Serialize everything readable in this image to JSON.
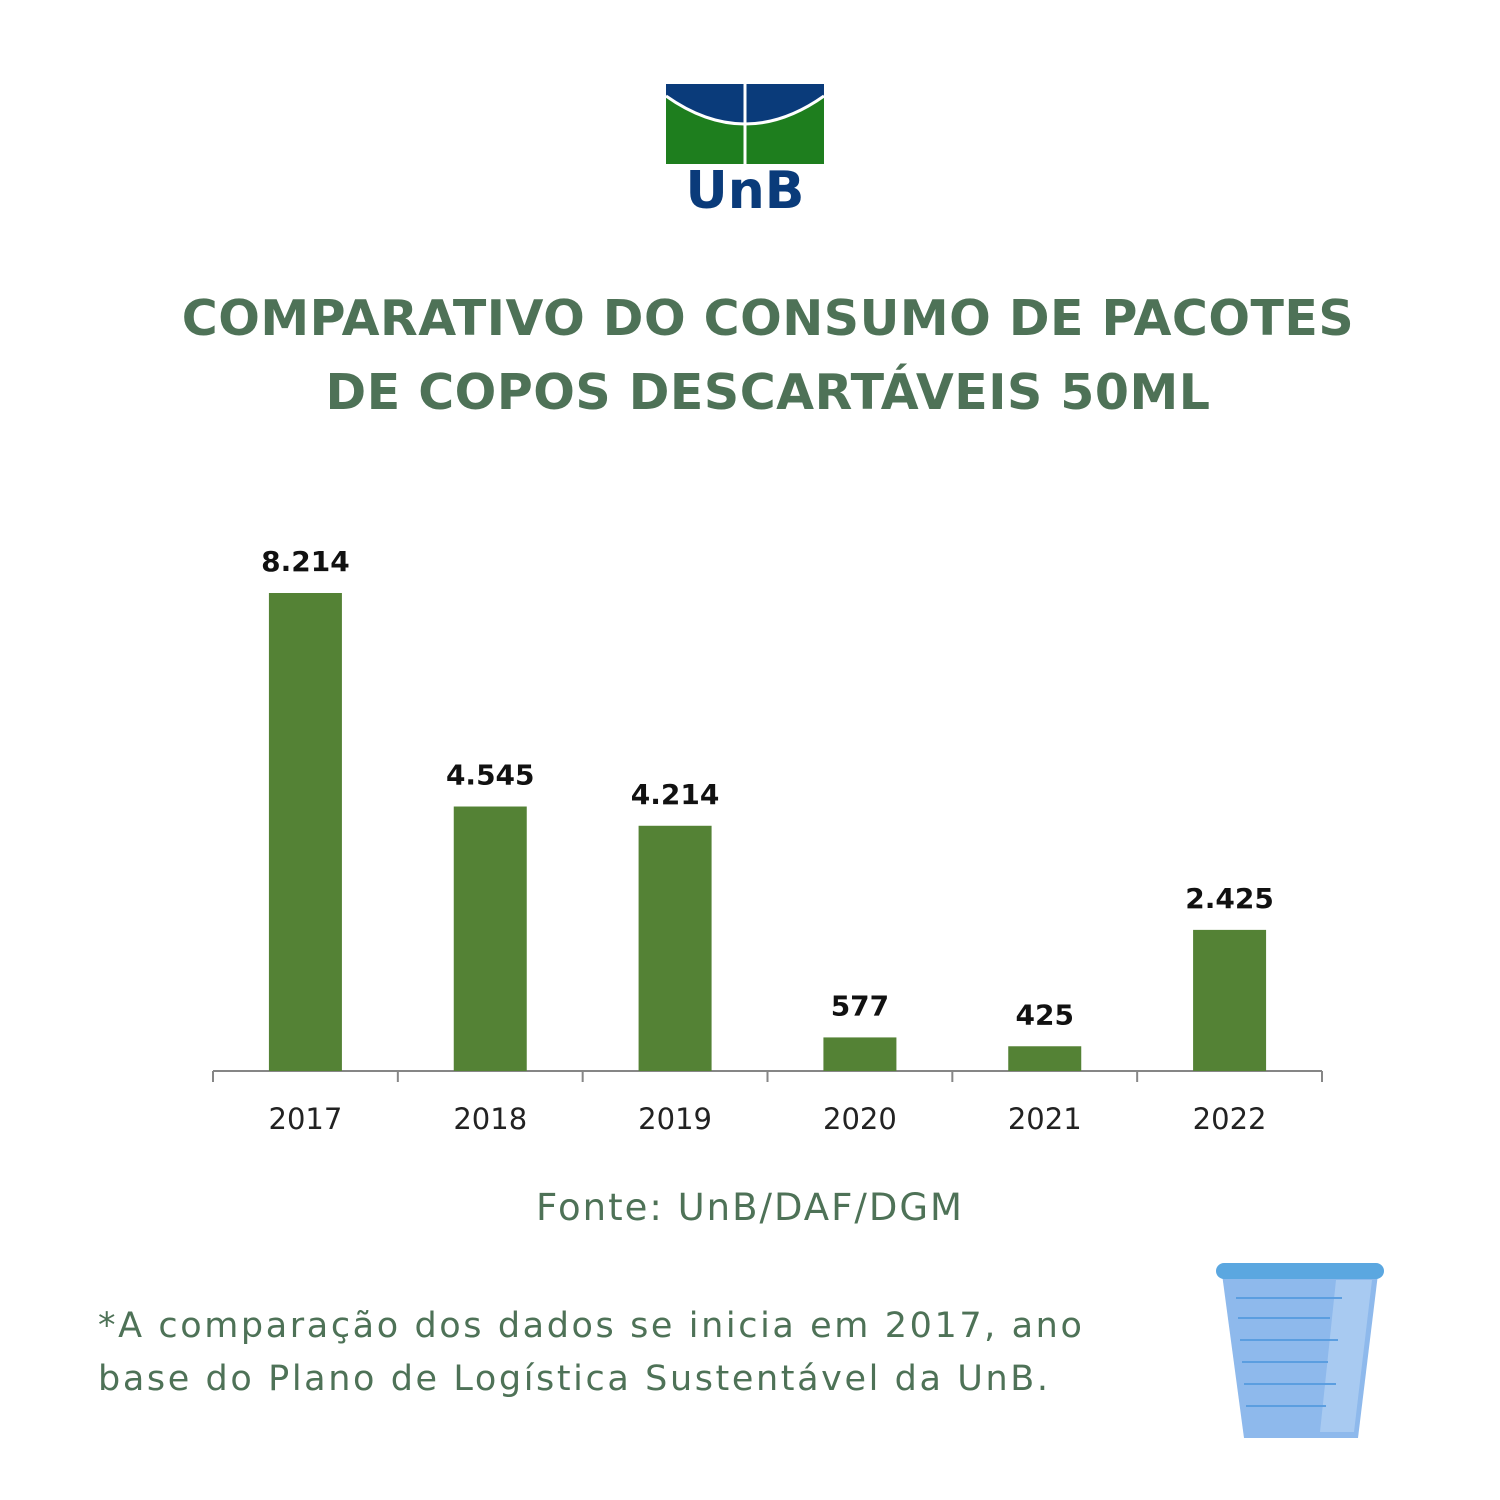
{
  "logo": {
    "text": "UnB"
  },
  "title": {
    "line1": "COMPARATIVO DO CONSUMO DE PACOTES",
    "line2": "DE COPOS DESCARTÁVEIS 50ML"
  },
  "colors": {
    "title": "#4e7257",
    "bar": "#548235",
    "logo_blue": "#0a3b7a",
    "logo_green": "#1e7e1e",
    "cup": "#8eb9ec"
  },
  "chart_data": {
    "type": "bar",
    "categories": [
      "2017",
      "2018",
      "2019",
      "2020",
      "2021",
      "2022"
    ],
    "values": [
      8214,
      4545,
      4214,
      577,
      425,
      2425
    ],
    "data_labels": [
      "8.214",
      "4.545",
      "4.214",
      "577",
      "425",
      "2.425"
    ],
    "title": "COMPARATIVO DO CONSUMO DE PACOTES DE COPOS DESCARTÁVEIS 50ML",
    "xlabel": "",
    "ylabel": "",
    "ylim": [
      0,
      8214
    ],
    "grid": false
  },
  "source": "Fonte: UnB/DAF/DGM",
  "footnote": {
    "line1": "*A comparação dos dados se inicia em 2017, ano",
    "line2": "base do Plano de Logística Sustentável da UnB."
  },
  "decoration": {
    "icon": "disposable-cup-icon"
  }
}
